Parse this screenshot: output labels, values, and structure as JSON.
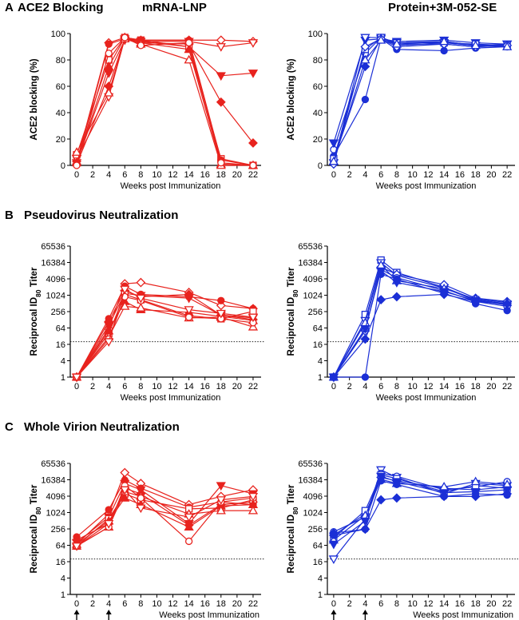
{
  "figure": {
    "sections": [
      {
        "letter": "A",
        "title": "ACE2 Blocking"
      },
      {
        "letter": "B",
        "title": "Pseudovirus Neutralization"
      },
      {
        "letter": "C",
        "title": "Whole Virion Neutralization"
      }
    ],
    "columns": [
      {
        "title": "mRNA-LNP",
        "color": "#e8231e"
      },
      {
        "title": "Protein+3M-052-SE",
        "color": "#1b2fd6"
      }
    ],
    "immunization_weeks": [
      0,
      4
    ]
  },
  "chart_data": [
    {
      "type": "line",
      "id": "A-left",
      "title": "mRNA-LNP",
      "xlabel": "Weeks post Immunization",
      "ylabel": "ACE2 blocking (%)",
      "yscale": "linear",
      "xlim": [
        -0.8,
        23
      ],
      "ylim": [
        0,
        100
      ],
      "xticks": [
        0,
        2,
        4,
        6,
        8,
        10,
        12,
        14,
        16,
        18,
        20,
        22
      ],
      "yticks": [
        0,
        20,
        40,
        60,
        80,
        100
      ],
      "ytick_labels": [
        "0",
        "20",
        "40",
        "60",
        "80",
        "100"
      ],
      "threshold": null,
      "x": [
        0,
        4,
        6,
        8,
        14,
        18,
        22
      ],
      "series": [
        {
          "marker": "diamond_open",
          "values": [
            3,
            93,
            97,
            95,
            95,
            95,
            94
          ]
        },
        {
          "marker": "tri_down_open",
          "values": [
            5,
            52,
            96,
            94,
            94,
            90,
            93
          ]
        },
        {
          "marker": "tri_down_filled",
          "values": [
            2,
            70,
            95,
            94,
            90,
            68,
            70
          ]
        },
        {
          "marker": "diamond_filled",
          "values": [
            1,
            60,
            96,
            93,
            92,
            48,
            17
          ]
        },
        {
          "marker": "square_open",
          "values": [
            8,
            80,
            97,
            95,
            90,
            5,
            0
          ]
        },
        {
          "marker": "circle_filled",
          "values": [
            1,
            92,
            96,
            95,
            95,
            4,
            0
          ]
        },
        {
          "marker": "tri_up_filled",
          "values": [
            2,
            75,
            97,
            93,
            88,
            1,
            0
          ]
        },
        {
          "marker": "tri_up_open",
          "values": [
            10,
            55,
            96,
            92,
            80,
            0,
            0
          ]
        },
        {
          "marker": "circle_open",
          "values": [
            0,
            85,
            97,
            91,
            93,
            2,
            0
          ]
        }
      ]
    },
    {
      "type": "line",
      "id": "A-right",
      "title": "Protein+3M-052-SE",
      "xlabel": "Weeks post Immunization",
      "ylabel": "ACE2 blocking (%)",
      "yscale": "linear",
      "xlim": [
        -0.8,
        23
      ],
      "ylim": [
        0,
        100
      ],
      "xticks": [
        0,
        2,
        4,
        6,
        8,
        10,
        12,
        14,
        16,
        18,
        20,
        22
      ],
      "yticks": [
        0,
        20,
        40,
        60,
        80,
        100
      ],
      "ytick_labels": [
        "0",
        "20",
        "40",
        "60",
        "80",
        "100"
      ],
      "threshold": null,
      "x": [
        0,
        4,
        6,
        8,
        14,
        18,
        22
      ],
      "series": [
        {
          "marker": "circle_open",
          "values": [
            12,
            85,
            97,
            92,
            92,
            90,
            91
          ]
        },
        {
          "marker": "circle_filled",
          "values": [
            7,
            50,
            96,
            88,
            87,
            89,
            90
          ]
        },
        {
          "marker": "diamond_filled",
          "values": [
            4,
            75,
            96,
            93,
            94,
            91,
            91
          ]
        },
        {
          "marker": "tri_down_filled",
          "values": [
            17,
            95,
            96,
            94,
            95,
            93,
            92
          ]
        },
        {
          "marker": "tri_down_open",
          "values": [
            2,
            97,
            97,
            93,
            93,
            91,
            92
          ]
        },
        {
          "marker": "square_open",
          "values": [
            5,
            88,
            97,
            91,
            93,
            92,
            91
          ]
        },
        {
          "marker": "diamond_open",
          "values": [
            1,
            90,
            96,
            90,
            92,
            90,
            91
          ]
        },
        {
          "marker": "tri_up_open",
          "values": [
            3,
            80,
            95,
            92,
            94,
            91,
            90
          ]
        }
      ]
    },
    {
      "type": "line",
      "id": "B-left",
      "title": "mRNA-LNP",
      "xlabel": "Weeks post Immunization",
      "ylabel": "Reciprocal ID80 Titer",
      "yscale": "log2",
      "xlim": [
        -0.8,
        23
      ],
      "ylim": [
        1,
        65536
      ],
      "xticks": [
        0,
        2,
        4,
        6,
        8,
        10,
        12,
        14,
        16,
        18,
        20,
        22
      ],
      "yticks": [
        1,
        4,
        16,
        64,
        256,
        1024,
        4096,
        16384,
        65536
      ],
      "ytick_labels": [
        "1",
        "4",
        "16",
        "64",
        "256",
        "1024",
        "4096",
        "16384",
        "65536"
      ],
      "threshold": 20,
      "x": [
        0,
        4,
        6,
        8,
        14,
        18,
        22
      ],
      "series": [
        {
          "marker": "diamond_open",
          "values": [
            1,
            60,
            2700,
            3000,
            1300,
            430,
            330
          ]
        },
        {
          "marker": "circle_filled",
          "values": [
            1,
            140,
            2200,
            1100,
            900,
            650,
            330
          ]
        },
        {
          "marker": "tri_down_filled",
          "values": [
            1,
            80,
            1200,
            1000,
            800,
            190,
            150
          ]
        },
        {
          "marker": "diamond_filled",
          "values": [
            1,
            110,
            1500,
            900,
            1100,
            190,
            130
          ]
        },
        {
          "marker": "square_open",
          "values": [
            1,
            40,
            1100,
            700,
            180,
            140,
            260
          ]
        },
        {
          "marker": "tri_up_filled",
          "values": [
            1,
            50,
            600,
            300,
            240,
            170,
            120
          ]
        },
        {
          "marker": "tri_up_open",
          "values": [
            1,
            30,
            400,
            350,
            150,
            160,
            70
          ]
        },
        {
          "marker": "circle_open",
          "values": [
            1,
            25,
            900,
            650,
            160,
            140,
            100
          ]
        },
        {
          "marker": "tri_down_open",
          "values": [
            1,
            20,
            1700,
            800,
            300,
            220,
            160
          ]
        }
      ]
    },
    {
      "type": "line",
      "id": "B-right",
      "title": "Protein+3M-052-SE",
      "xlabel": "Weeks post Immunization",
      "ylabel": "Reciprocal ID80 Titer",
      "yscale": "log2",
      "xlim": [
        -0.8,
        23
      ],
      "ylim": [
        1,
        65536
      ],
      "xticks": [
        0,
        2,
        4,
        6,
        8,
        10,
        12,
        14,
        16,
        18,
        20,
        22
      ],
      "yticks": [
        1,
        4,
        16,
        64,
        256,
        1024,
        4096,
        16384,
        65536
      ],
      "ytick_labels": [
        "1",
        "4",
        "16",
        "64",
        "256",
        "1024",
        "4096",
        "16384",
        "65536"
      ],
      "threshold": 20,
      "x": [
        0,
        4,
        6,
        8,
        14,
        18,
        22
      ],
      "series": [
        {
          "marker": "square_open",
          "values": [
            1,
            200,
            20000,
            7000,
            2000,
            700,
            500
          ]
        },
        {
          "marker": "tri_down_open",
          "values": [
            1,
            120,
            16000,
            5500,
            1900,
            650,
            480
          ]
        },
        {
          "marker": "diamond_open",
          "values": [
            1,
            50,
            11000,
            6000,
            2500,
            800,
            600
          ]
        },
        {
          "marker": "circle_open",
          "values": [
            1,
            60,
            9000,
            4500,
            1500,
            600,
            400
          ]
        },
        {
          "marker": "tri_up_open",
          "values": [
            1,
            100,
            13000,
            3500,
            1800,
            750,
            550
          ]
        },
        {
          "marker": "tri_down_filled",
          "values": [
            1,
            60,
            8000,
            3000,
            1400,
            650,
            450
          ]
        },
        {
          "marker": "diamond_filled",
          "values": [
            1,
            25,
            700,
            900,
            1100,
            600,
            500
          ]
        },
        {
          "marker": "circle_filled",
          "values": [
            1,
            1,
            6000,
            4000,
            1200,
            500,
            280
          ]
        }
      ]
    },
    {
      "type": "line",
      "id": "C-left",
      "title": "mRNA-LNP",
      "xlabel": "Weeks post Immunization",
      "ylabel": "Reciprocal ID80 Titer",
      "yscale": "log2",
      "xlim": [
        -0.8,
        23
      ],
      "ylim": [
        1,
        65536
      ],
      "xticks": [
        0,
        2,
        4,
        6,
        8,
        10,
        12,
        14,
        16,
        18,
        20,
        22
      ],
      "yticks": [
        1,
        4,
        16,
        64,
        256,
        1024,
        4096,
        16384,
        65536
      ],
      "ytick_labels": [
        "1",
        "4",
        "16",
        "64",
        "256",
        "1024",
        "4096",
        "16384",
        "65536"
      ],
      "threshold": 20,
      "x": [
        0,
        4,
        6,
        8,
        14,
        18,
        22
      ],
      "series": [
        {
          "marker": "diamond_open",
          "values": [
            70,
            900,
            30000,
            12000,
            2000,
            4000,
            7000
          ]
        },
        {
          "marker": "circle_filled",
          "values": [
            130,
            1300,
            16000,
            8000,
            1600,
            2500,
            2000
          ]
        },
        {
          "marker": "tri_down_filled",
          "values": [
            80,
            700,
            12000,
            7000,
            400,
            10000,
            5000
          ]
        },
        {
          "marker": "diamond_filled",
          "values": [
            100,
            400,
            8000,
            5000,
            350,
            2000,
            2500
          ]
        },
        {
          "marker": "square_open",
          "values": [
            60,
            600,
            5000,
            3000,
            1400,
            1500,
            3000
          ]
        },
        {
          "marker": "tri_up_filled",
          "values": [
            70,
            500,
            3500,
            2000,
            300,
            1800,
            2000
          ]
        },
        {
          "marker": "tri_up_open",
          "values": [
            60,
            300,
            6000,
            4000,
            900,
            1200,
            1200
          ]
        },
        {
          "marker": "circle_open",
          "values": [
            60,
            300,
            10000,
            3500,
            90,
            2500,
            3500
          ]
        },
        {
          "marker": "tri_down_open",
          "values": [
            60,
            400,
            7000,
            1500,
            700,
            3000,
            4000
          ]
        }
      ]
    },
    {
      "type": "line",
      "id": "C-right",
      "title": "Protein+3M-052-SE",
      "xlabel": "Weeks post Immunization",
      "ylabel": "Reciprocal ID80 Titer",
      "yscale": "log2",
      "xlim": [
        -0.8,
        23
      ],
      "ylim": [
        1,
        65536
      ],
      "xticks": [
        0,
        2,
        4,
        6,
        8,
        10,
        12,
        14,
        16,
        18,
        20,
        22
      ],
      "yticks": [
        1,
        4,
        16,
        64,
        256,
        1024,
        4096,
        16384,
        65536
      ],
      "ytick_labels": [
        "1",
        "4",
        "16",
        "64",
        "256",
        "1024",
        "4096",
        "16384",
        "65536"
      ],
      "threshold": 20,
      "x": [
        0,
        4,
        6,
        8,
        14,
        18,
        22
      ],
      "series": [
        {
          "marker": "tri_down_open",
          "values": [
            20,
            600,
            38000,
            20000,
            5000,
            12000,
            10000
          ]
        },
        {
          "marker": "circle_open",
          "values": [
            200,
            700,
            28000,
            22000,
            7000,
            9000,
            14000
          ]
        },
        {
          "marker": "diamond_open",
          "values": [
            150,
            900,
            20000,
            15000,
            8000,
            7000,
            9000
          ]
        },
        {
          "marker": "square_open",
          "values": [
            120,
            1200,
            25000,
            18000,
            6000,
            10000,
            8000
          ]
        },
        {
          "marker": "tri_up_open",
          "values": [
            100,
            800,
            17000,
            12000,
            9000,
            14000,
            11000
          ]
        },
        {
          "marker": "tri_down_filled",
          "values": [
            70,
            500,
            22000,
            14000,
            5500,
            6000,
            7000
          ]
        },
        {
          "marker": "diamond_filled",
          "values": [
            180,
            250,
            3000,
            3500,
            4000,
            4000,
            5000
          ]
        },
        {
          "marker": "circle_filled",
          "values": [
            150,
            250,
            15000,
            11000,
            4000,
            5000,
            4500
          ]
        }
      ]
    }
  ]
}
